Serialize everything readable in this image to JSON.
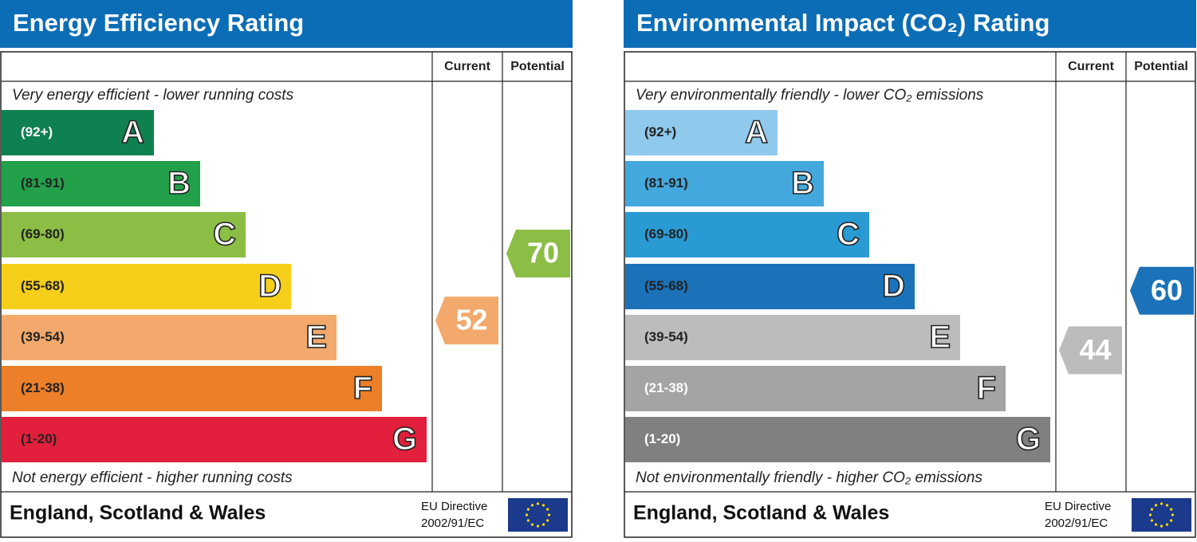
{
  "panels": [
    {
      "title": "Energy Efficiency Rating",
      "current_header": "Current",
      "potential_header": "Potential",
      "top_note": "Very energy efficient - lower running costs",
      "bottom_note": "Not energy efficient - higher running costs",
      "bands": [
        {
          "range": "(92+)",
          "letter": "A",
          "color": "#0f8150",
          "text_color": "#ffffff"
        },
        {
          "range": "(81-91)",
          "letter": "B",
          "color": "#23a04a",
          "text_color": "#222222"
        },
        {
          "range": "(69-80)",
          "letter": "C",
          "color": "#8cbd44",
          "text_color": "#222222"
        },
        {
          "range": "(55-68)",
          "letter": "D",
          "color": "#f6cf1a",
          "text_color": "#222222"
        },
        {
          "range": "(39-54)",
          "letter": "E",
          "color": "#f2a96b",
          "text_color": "#222222"
        },
        {
          "range": "(21-38)",
          "letter": "F",
          "color": "#ec7f28",
          "text_color": "#222222"
        },
        {
          "range": "(1-20)",
          "letter": "G",
          "color": "#e21f3c",
          "text_color": "#222222"
        }
      ],
      "current": {
        "value": 52,
        "color": "#f2a96b"
      },
      "potential": {
        "value": 70,
        "color": "#8cbd44"
      },
      "country": "England, Scotland & Wales",
      "directive": [
        "EU Directive",
        "2002/91/EC"
      ]
    },
    {
      "title": "Environmental Impact (CO₂) Rating",
      "current_header": "Current",
      "potential_header": "Potential",
      "top_note": "Very environmentally friendly - lower CO₂ emissions",
      "bottom_note": "Not environmentally friendly - higher CO₂ emissions",
      "bands": [
        {
          "range": "(92+)",
          "letter": "A",
          "color": "#8fc9ec",
          "text_color": "#222222"
        },
        {
          "range": "(81-91)",
          "letter": "B",
          "color": "#43a8dc",
          "text_color": "#222222"
        },
        {
          "range": "(69-80)",
          "letter": "C",
          "color": "#2a9ad3",
          "text_color": "#222222"
        },
        {
          "range": "(55-68)",
          "letter": "D",
          "color": "#1b72b9",
          "text_color": "#222222"
        },
        {
          "range": "(39-54)",
          "letter": "E",
          "color": "#bcbcbc",
          "text_color": "#222222"
        },
        {
          "range": "(21-38)",
          "letter": "F",
          "color": "#a4a4a4",
          "text_color": "#ffffff"
        },
        {
          "range": "(1-20)",
          "letter": "G",
          "color": "#808080",
          "text_color": "#ffffff"
        }
      ],
      "current": {
        "value": 44,
        "color": "#bcbcbc"
      },
      "potential": {
        "value": 60,
        "color": "#1b72b9"
      },
      "country": "England, Scotland & Wales",
      "directive": [
        "EU Directive",
        "2002/91/EC"
      ]
    }
  ]
}
